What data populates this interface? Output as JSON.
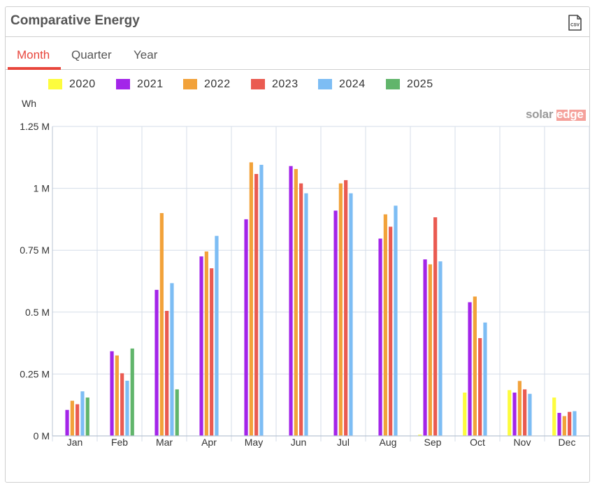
{
  "panel": {
    "title": "Comparative Energy",
    "csv_icon_label": "CSV"
  },
  "tabs": [
    {
      "label": "Month",
      "active": true
    },
    {
      "label": "Quarter",
      "active": false
    },
    {
      "label": "Year",
      "active": false
    }
  ],
  "brand": {
    "solar": "solar",
    "edge": "edge"
  },
  "colors": {
    "accent": "#e8463c",
    "grid": "#d5dde8",
    "axis": "#b9c4d3"
  },
  "chart_data": {
    "type": "bar",
    "ylabel": "Wh",
    "ylim": [
      0,
      1250000
    ],
    "yticks": [
      0,
      250000,
      500000,
      750000,
      1000000,
      1250000
    ],
    "yticklabels": [
      "0 M",
      "0.25 M",
      "0.5 M",
      "0.75 M",
      "1 M",
      "1.25 M"
    ],
    "grid": true,
    "legend_position": "top",
    "categories": [
      "Jan",
      "Feb",
      "Mar",
      "Apr",
      "May",
      "Jun",
      "Jul",
      "Aug",
      "Sep",
      "Oct",
      "Nov",
      "Dec"
    ],
    "series": [
      {
        "name": "2020",
        "color": "#fdfc3e",
        "values": [
          null,
          null,
          null,
          null,
          null,
          null,
          null,
          null,
          5000,
          175000,
          185000,
          155000
        ]
      },
      {
        "name": "2021",
        "color": "#a325e9",
        "values": [
          105000,
          342000,
          590000,
          725000,
          875000,
          1090000,
          910000,
          797000,
          713000,
          540000,
          175000,
          93000
        ]
      },
      {
        "name": "2022",
        "color": "#f2a23a",
        "values": [
          142000,
          325000,
          900000,
          745000,
          1105000,
          1078000,
          1020000,
          895000,
          693000,
          563000,
          222000,
          80000
        ]
      },
      {
        "name": "2023",
        "color": "#ea5b51",
        "values": [
          128000,
          253000,
          505000,
          677000,
          1058000,
          1020000,
          1033000,
          845000,
          883000,
          395000,
          188000,
          97000
        ]
      },
      {
        "name": "2024",
        "color": "#7dbdf4",
        "values": [
          180000,
          223000,
          617000,
          808000,
          1095000,
          980000,
          980000,
          930000,
          705000,
          458000,
          170000,
          100000
        ]
      },
      {
        "name": "2025",
        "color": "#61b56b",
        "values": [
          155000,
          353000,
          188000,
          null,
          null,
          null,
          null,
          null,
          null,
          null,
          null,
          null
        ]
      }
    ]
  }
}
